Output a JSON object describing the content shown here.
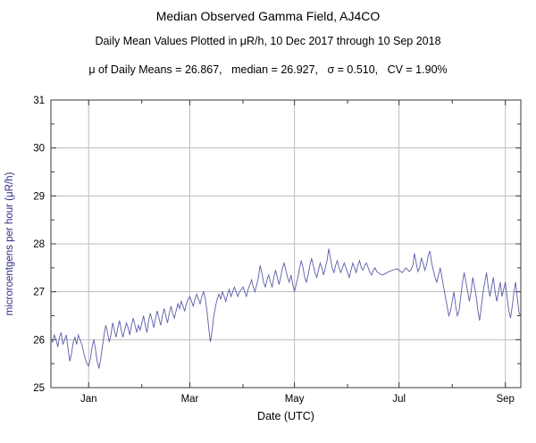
{
  "header": {
    "title": "Median Observed Gamma Field, AJ4CO",
    "subtitle": "Daily Mean Values Plotted in μR/h, 10 Dec 2017 through 10 Sep 2018",
    "stats": "μ of Daily Means = 26.867,   median = 26.927,   σ = 0.510,   CV = 1.90%"
  },
  "chart_data": {
    "type": "line",
    "title": "Median Observed Gamma Field, AJ4CO",
    "subtitle": "Daily Mean Values Plotted in μR/h, 10 Dec 2017 through 10 Sep 2018",
    "stats_line": "μ of Daily Means = 26.867,   median = 26.927,   σ = 0.510,   CV = 1.90%",
    "xlabel": "Date (UTC)",
    "ylabel": "microroentgens per hour (μR/h)",
    "x_start": "2017-12-10",
    "x_end": "2018-09-10",
    "ylim": [
      25,
      31
    ],
    "grid": true,
    "legend": "none",
    "line_color": "#5c5caa",
    "grid_color": "#bdbdbd",
    "frame_color": "#3a3a3a",
    "ylabel_color": "#2d2d86",
    "y_ticks": [
      25,
      26,
      27,
      28,
      29,
      30,
      31
    ],
    "x_ticks": [
      {
        "label": "Jan",
        "day": 22
      },
      {
        "label": "Mar",
        "day": 81
      },
      {
        "label": "May",
        "day": 142
      },
      {
        "label": "Jul",
        "day": 203
      },
      {
        "label": "Sep",
        "day": 265
      }
    ],
    "x_minor_tick_days": [
      53,
      112,
      173,
      234
    ],
    "y_minor_ticks": [
      25.5,
      26.5,
      27.5,
      28.5,
      29.5,
      30.5
    ],
    "values": [
      26.0,
      25.95,
      26.1,
      26.0,
      25.85,
      26.05,
      26.15,
      25.9,
      26.0,
      26.1,
      25.8,
      25.55,
      25.7,
      25.95,
      26.05,
      25.9,
      26.1,
      26.0,
      25.9,
      25.75,
      25.6,
      25.5,
      25.45,
      25.6,
      25.85,
      26.0,
      25.8,
      25.55,
      25.4,
      25.6,
      25.85,
      26.1,
      26.3,
      26.15,
      25.95,
      26.1,
      26.35,
      26.2,
      26.05,
      26.25,
      26.4,
      26.2,
      26.05,
      26.2,
      26.35,
      26.25,
      26.1,
      26.3,
      26.45,
      26.3,
      26.15,
      26.3,
      26.2,
      26.35,
      26.5,
      26.3,
      26.15,
      26.4,
      26.55,
      26.4,
      26.25,
      26.45,
      26.6,
      26.45,
      26.3,
      26.5,
      26.65,
      26.5,
      26.35,
      26.55,
      26.7,
      26.55,
      26.45,
      26.6,
      26.75,
      26.65,
      26.8,
      26.7,
      26.6,
      26.75,
      26.85,
      26.9,
      26.8,
      26.7,
      26.85,
      26.95,
      26.85,
      26.75,
      26.9,
      27.0,
      26.85,
      26.6,
      26.25,
      25.95,
      26.2,
      26.5,
      26.7,
      26.85,
      26.95,
      26.85,
      27.0,
      26.9,
      26.8,
      26.95,
      27.05,
      26.9,
      27.0,
      27.1,
      27.0,
      26.9,
      27.0,
      27.05,
      27.1,
      27.0,
      26.9,
      27.05,
      27.15,
      27.25,
      27.1,
      27.0,
      27.15,
      27.3,
      27.55,
      27.4,
      27.2,
      27.1,
      27.25,
      27.35,
      27.2,
      27.1,
      27.3,
      27.45,
      27.3,
      27.15,
      27.3,
      27.5,
      27.6,
      27.45,
      27.3,
      27.2,
      27.35,
      27.15,
      27.0,
      27.15,
      27.3,
      27.5,
      27.65,
      27.5,
      27.3,
      27.2,
      27.35,
      27.55,
      27.7,
      27.55,
      27.4,
      27.3,
      27.45,
      27.6,
      27.5,
      27.35,
      27.5,
      27.65,
      27.9,
      27.7,
      27.5,
      27.4,
      27.55,
      27.65,
      27.5,
      27.4,
      27.5,
      27.6,
      27.5,
      27.4,
      27.3,
      27.45,
      27.6,
      27.5,
      27.4,
      27.55,
      27.65,
      27.5,
      27.45,
      27.55,
      27.6,
      27.5,
      27.4,
      27.35,
      27.45,
      27.5,
      27.42,
      27.4,
      27.37,
      27.35,
      27.36,
      27.38,
      27.4,
      27.42,
      27.43,
      27.45,
      27.46,
      27.47,
      27.48,
      27.45,
      27.42,
      27.4,
      27.45,
      27.5,
      27.46,
      27.42,
      27.46,
      27.55,
      27.8,
      27.6,
      27.42,
      27.5,
      27.7,
      27.6,
      27.45,
      27.55,
      27.75,
      27.85,
      27.6,
      27.45,
      27.3,
      27.2,
      27.35,
      27.5,
      27.3,
      27.1,
      26.9,
      26.7,
      26.5,
      26.6,
      26.8,
      27.0,
      26.7,
      26.5,
      26.6,
      26.9,
      27.2,
      27.4,
      27.2,
      27.0,
      26.8,
      27.0,
      27.3,
      27.1,
      26.9,
      26.6,
      26.4,
      26.7,
      27.0,
      27.2,
      27.4,
      27.1,
      26.9,
      27.1,
      27.3,
      27.0,
      26.8,
      27.0,
      27.2,
      26.9,
      27.05,
      27.2,
      26.9,
      26.6,
      26.45,
      26.7,
      27.0,
      27.2,
      26.85,
      26.55,
      26.5
    ]
  }
}
